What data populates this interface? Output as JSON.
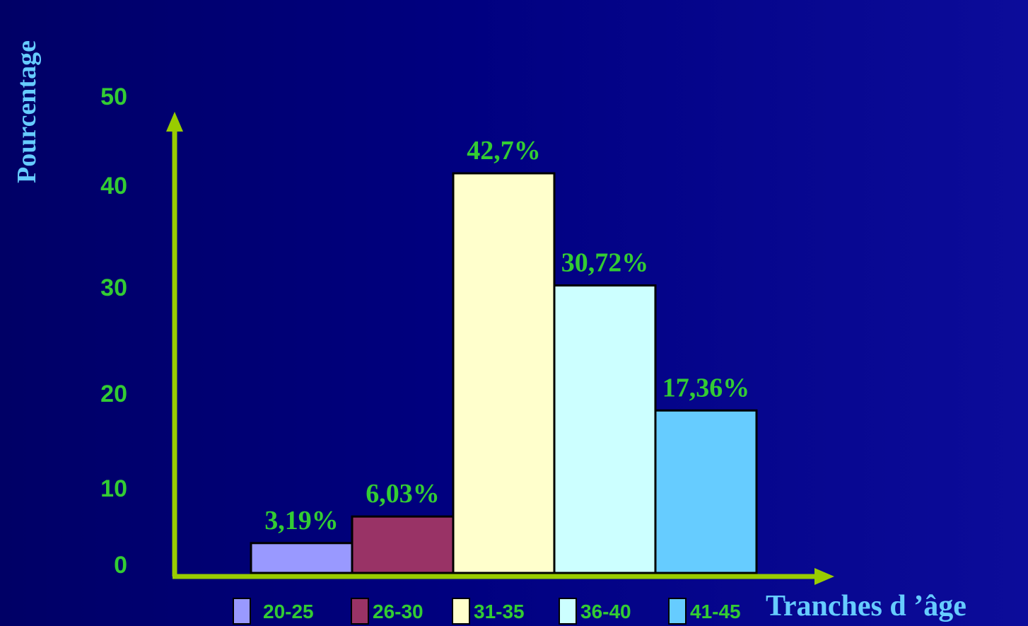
{
  "chart_data": {
    "type": "bar",
    "categories": [
      "20-25",
      "26-30",
      "31-35",
      "36-40",
      "41-45"
    ],
    "values": [
      3.19,
      6.03,
      42.7,
      30.72,
      17.36
    ],
    "data_labels": [
      "3,19%",
      "6,03%",
      "42,7%",
      "30,72%",
      "17,36%"
    ],
    "colors": [
      "#9999ff",
      "#993366",
      "#ffffcc",
      "#ccffff",
      "#66ccff"
    ],
    "ylabel": "Pourcentage",
    "xlabel": "Tranches d ’âge",
    "y_ticks": [
      "0",
      "10",
      "20",
      "30",
      "40",
      "50"
    ],
    "ylim": [
      0,
      50
    ],
    "legend": [
      "20-25",
      "26-30",
      "31-35",
      "36-40",
      "41-45"
    ],
    "legend_position": "bottom",
    "grid": false,
    "axis_color": "#99cc00",
    "text_color": "#33cc33",
    "title_color": "#66ccff"
  }
}
